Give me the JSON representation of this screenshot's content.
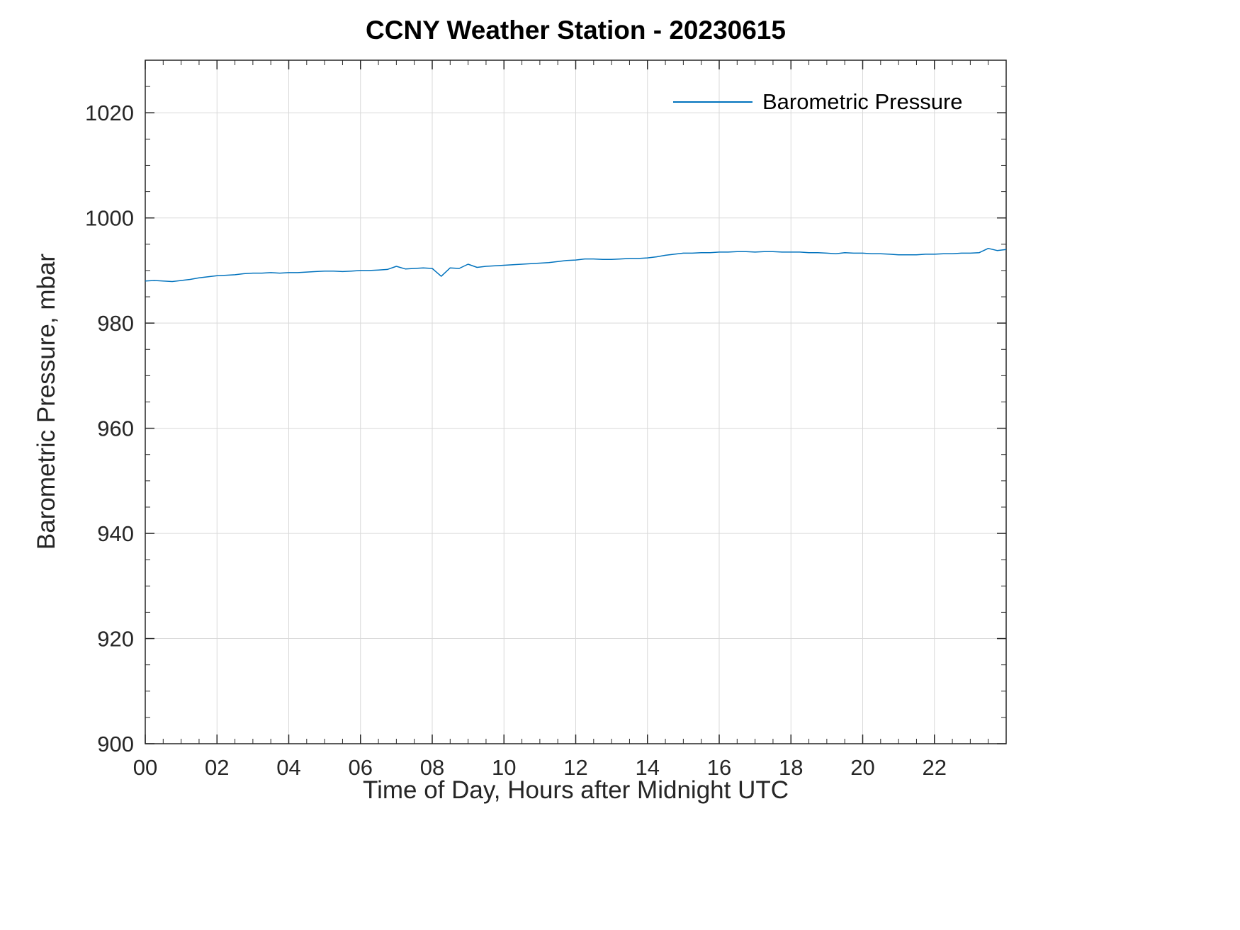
{
  "title": "CCNY Weather Station - 20230615",
  "colors": {
    "line": "#0072BD",
    "grid": "#d9d9d9",
    "axis": "#262626",
    "background": "#ffffff"
  },
  "legend": {
    "position": "northeast",
    "entries": [
      {
        "label": "Barometric Pressure",
        "color": "#0072BD"
      }
    ]
  },
  "chart_data": {
    "type": "line",
    "title": "CCNY Weather Station - 20230615",
    "xlabel": "Time of Day, Hours after Midnight UTC",
    "ylabel": "Barometric Pressure, mbar",
    "xlim": [
      0,
      24
    ],
    "ylim": [
      900,
      1030
    ],
    "xticks": [
      0,
      2,
      4,
      6,
      8,
      10,
      12,
      14,
      16,
      18,
      20,
      22
    ],
    "xtick_labels": [
      "00",
      "02",
      "04",
      "06",
      "08",
      "10",
      "12",
      "14",
      "16",
      "18",
      "20",
      "22"
    ],
    "yticks": [
      900,
      920,
      940,
      960,
      980,
      1000,
      1020
    ],
    "ytick_labels": [
      "900",
      "920",
      "940",
      "960",
      "980",
      "1000",
      "1020"
    ],
    "x_minor_step": 0.5,
    "y_minor_step": 5,
    "grid": true,
    "legend_position": "northeast",
    "series": [
      {
        "name": "Barometric Pressure",
        "color": "#0072BD",
        "x": [
          0,
          0.25,
          0.5,
          0.75,
          1,
          1.25,
          1.5,
          1.75,
          2,
          2.25,
          2.5,
          2.75,
          3,
          3.25,
          3.5,
          3.75,
          4,
          4.25,
          4.5,
          4.75,
          5,
          5.25,
          5.5,
          5.75,
          6,
          6.25,
          6.5,
          6.75,
          7,
          7.25,
          7.5,
          7.75,
          8,
          8.25,
          8.5,
          8.75,
          9,
          9.25,
          9.5,
          9.75,
          10,
          10.25,
          10.5,
          10.75,
          11,
          11.25,
          11.5,
          11.75,
          12,
          12.25,
          12.5,
          12.75,
          13,
          13.25,
          13.5,
          13.75,
          14,
          14.25,
          14.5,
          14.75,
          15,
          15.25,
          15.5,
          15.75,
          16,
          16.25,
          16.5,
          16.75,
          17,
          17.25,
          17.5,
          17.75,
          18,
          18.25,
          18.5,
          18.75,
          19,
          19.25,
          19.5,
          19.75,
          20,
          20.25,
          20.5,
          20.75,
          21,
          21.25,
          21.5,
          21.75,
          22,
          22.25,
          22.5,
          22.75,
          23,
          23.25,
          23.5,
          23.75,
          24
        ],
        "y": [
          988.0,
          988.1,
          988.0,
          987.9,
          988.1,
          988.3,
          988.6,
          988.8,
          989.0,
          989.1,
          989.2,
          989.4,
          989.5,
          989.5,
          989.6,
          989.5,
          989.6,
          989.6,
          989.7,
          989.8,
          989.9,
          989.9,
          989.8,
          989.9,
          990.0,
          990.0,
          990.1,
          990.2,
          990.8,
          990.3,
          990.4,
          990.5,
          990.4,
          988.9,
          990.5,
          990.4,
          991.2,
          990.6,
          990.8,
          990.9,
          991.0,
          991.1,
          991.2,
          991.3,
          991.4,
          991.5,
          991.7,
          991.9,
          992.0,
          992.2,
          992.2,
          992.1,
          992.1,
          992.2,
          992.3,
          992.3,
          992.4,
          992.6,
          992.9,
          993.1,
          993.3,
          993.3,
          993.4,
          993.4,
          993.5,
          993.5,
          993.6,
          993.6,
          993.5,
          993.6,
          993.6,
          993.5,
          993.5,
          993.5,
          993.4,
          993.4,
          993.3,
          993.2,
          993.4,
          993.3,
          993.3,
          993.2,
          993.2,
          993.1,
          993.0,
          993.0,
          993.0,
          993.1,
          993.1,
          993.2,
          993.2,
          993.3,
          993.3,
          993.4,
          994.2,
          993.8,
          994.0
        ]
      }
    ]
  }
}
